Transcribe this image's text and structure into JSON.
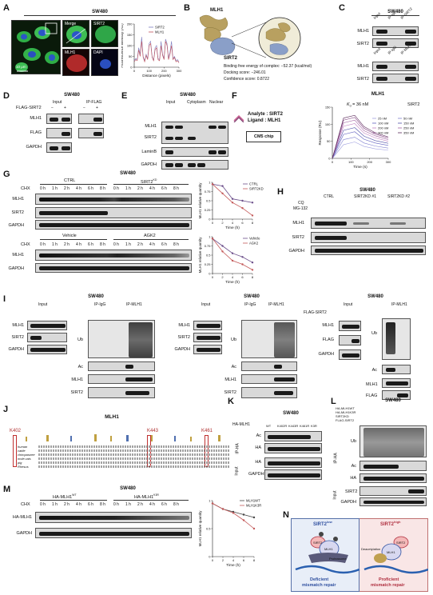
{
  "panels": {
    "A": {
      "label": "A",
      "title": "SW480",
      "merge": "Merge",
      "sirt2": "SIRT2",
      "mlh1": "MLH1",
      "dapi": "DAPI",
      "scale": "10 μm",
      "ylabel": "Fluorescence intensity (AU)",
      "xlabel": "Distance (pixels)",
      "legend": [
        "SIRT2",
        "MLH1"
      ]
    },
    "B": {
      "label": "B",
      "mlh1": "MLH1",
      "sirt2": "SIRT2",
      "lines": [
        "Binding free energy of complex: −52.37 (kcal/mol)",
        "Docking score: −246.01",
        "Confidence score: 0.8722"
      ]
    },
    "C": {
      "label": "C",
      "title": "SW480",
      "lanes": [
        "Input",
        "IP-IgG",
        "IP-SIRT2"
      ],
      "lanes2": [
        "Input",
        "IP-IgG",
        "IP-MLH1"
      ],
      "rows": [
        "MLH1",
        "SIRT2",
        "MLH1",
        "SIRT2"
      ]
    },
    "D": {
      "label": "D",
      "title": "SW480",
      "flag": "FLAG-SIRT2",
      "minus": "−",
      "plus": "+",
      "input": "Input",
      "ipflag": "IP-FLAG",
      "rows": [
        "MLH1",
        "FLAG",
        "GAPDH"
      ]
    },
    "E": {
      "label": "E",
      "title": "SW480",
      "groups": [
        "Input",
        "Cytoplasm",
        "Nuclear"
      ],
      "rows": [
        "MLH1",
        "SIRT2",
        "LaminB",
        "GAPDH"
      ]
    },
    "F": {
      "label": "F",
      "title": "MLH1",
      "analyte": "Analyte : SIRT2",
      "ligand": "Ligand : MLH1",
      "chip": "CM5 chip",
      "kd": "K",
      "kd_sub": "d",
      "kd_val": " = 36 nM",
      "sirt2": "SIRT2",
      "conc": [
        "25 nM",
        "50 nM",
        "100 nM",
        "150 nM",
        "200 nM",
        "250 nM",
        "300 nM",
        "350 nM"
      ],
      "ylabel": "Response (RU)",
      "xlabel": "Time (s)"
    },
    "G": {
      "label": "G",
      "title": "SW480",
      "ctrl": "CTRL",
      "kd": "SIRT2",
      "kd_sup": "KD",
      "vehicle": "Vehicle",
      "agk2": "AGK2",
      "chx": "CHX",
      "times": [
        "0 h",
        "1 h",
        "2 h",
        "4 h",
        "6 h",
        "8 h"
      ],
      "rows1": [
        "MLH1",
        "SIRT2",
        "GAPDH"
      ],
      "rows2": [
        "MLH1",
        "GAPDH"
      ],
      "ylabel": "MLH1 relative quantity",
      "xlabel": "Time (h)",
      "legend1": [
        "CTRL",
        "SIRT2KD"
      ],
      "legend2": [
        "Vehicle",
        "AGK2"
      ]
    },
    "H": {
      "label": "H",
      "title": "SW480",
      "groups": [
        "CTRL",
        "SIRT2KD #1",
        "SIRT2KD #2"
      ],
      "cq": "CQ",
      "mg": "MG-132",
      "rows": [
        "MLH1",
        "SIRT2",
        "GAPDH"
      ]
    },
    "I": {
      "label": "I",
      "title": "SW480",
      "input": "Input",
      "ipigg": "IP-IgG",
      "ipmlh1": "IP-MLH1",
      "rows_left": [
        "MLH1",
        "SIRT2",
        "GAPDH"
      ],
      "rows_right": [
        "Ub",
        "Ac",
        "MLH1",
        "SIRT2"
      ],
      "flag": "FLAG-SIRT2",
      "rows3_left": [
        "MLH1",
        "FLAG",
        "GAPDH"
      ],
      "rows3_right": [
        "Ub",
        "Ac",
        "MLH1",
        "FLAG"
      ]
    },
    "J": {
      "label": "J",
      "title": "MLH1",
      "sites": [
        "K402",
        "K443",
        "K461"
      ],
      "species": [
        "human",
        "cattle",
        "chimpanzee",
        "mole-rats",
        "pig",
        "Rhesus"
      ]
    },
    "K": {
      "label": "K",
      "title": "SW480",
      "ha": "HA-MLH1",
      "variants": [
        "WT",
        "K402R",
        "K443R",
        "K461R",
        "K3R"
      ],
      "rows": [
        "Ac",
        "HA",
        "HA",
        "GAPDH"
      ],
      "ip": "IP-HA",
      "inp": "Input"
    },
    "L": {
      "label": "L",
      "title": "SW480",
      "rows": [
        "Ub",
        "Ac",
        "HA",
        "SIRT2",
        "GAPDH"
      ],
      "conds": [
        "HA-MLH1WT",
        "HA-MLH1K3R",
        "SIRT2KD",
        "FLAG-SIRT2"
      ],
      "ip": "IP-HA",
      "inp": "Input"
    },
    "M": {
      "label": "M",
      "title": "SW480",
      "wt": "HA-MLH1",
      "k3r": "HA-MLH1",
      "wt_sup": "WT",
      "k3r_sup": "K3R",
      "chx": "CHX",
      "times": [
        "0 h",
        "1 h",
        "2 h",
        "4 h",
        "6 h",
        "8 h"
      ],
      "rows": [
        "HA-MLH1",
        "GAPDH"
      ],
      "ylabel": "MLH1 relative quantity",
      "xlabel": "Time (h)",
      "legend": [
        "MLH1WT",
        "MLH1K3R"
      ]
    },
    "N": {
      "label": "N",
      "left_title": "SIRT2",
      "left_sup": "low",
      "right_title": "SIRT2",
      "right_sup": "high",
      "left_foot": [
        "Deficient",
        "mismatch repair"
      ],
      "right_foot": [
        "Proficient",
        "mismatch repair"
      ],
      "proteasome": "Proteasome",
      "deacetylation": "Deacetylation",
      "mlh1": "MLH1",
      "sirt2": "SIRT2"
    }
  },
  "colors": {
    "sirt2_line": "#7d7dbf",
    "mlh1_line": "#c0505a",
    "ctrl": "#6b4e8a",
    "kd": "#c45a5a",
    "chart_gray": "#888888"
  },
  "chart_data": [
    {
      "type": "line",
      "title": "",
      "xlabel": "Distance (pixels)",
      "ylabel": "Fluorescence intensity (AU)",
      "ylim": [
        0,
        200
      ],
      "xlim": [
        0,
        300
      ],
      "x_ticks": [
        0,
        100,
        200,
        300
      ],
      "y_ticks": [
        0,
        50,
        100,
        150,
        200
      ],
      "series": [
        {
          "name": "SIRT2",
          "x": [
            0,
            10,
            20,
            30,
            40,
            50,
            60,
            70,
            80,
            90,
            100,
            110,
            120,
            130,
            140,
            150,
            160,
            170,
            180,
            190,
            200,
            210,
            220,
            230,
            240,
            250,
            260,
            270,
            280,
            290,
            300
          ],
          "values": [
            30,
            40,
            35,
            90,
            60,
            140,
            50,
            30,
            60,
            40,
            110,
            120,
            50,
            30,
            90,
            100,
            40,
            35,
            120,
            60,
            40,
            130,
            110,
            40,
            70,
            120,
            40,
            50,
            30,
            35,
            25
          ]
        },
        {
          "name": "MLH1",
          "x": [
            0,
            10,
            20,
            30,
            40,
            50,
            60,
            70,
            80,
            90,
            100,
            110,
            120,
            130,
            140,
            150,
            160,
            170,
            180,
            190,
            200,
            210,
            220,
            230,
            240,
            250,
            260,
            270,
            280,
            290,
            300
          ],
          "values": [
            25,
            35,
            30,
            80,
            50,
            120,
            45,
            25,
            55,
            35,
            100,
            110,
            45,
            30,
            80,
            90,
            35,
            30,
            100,
            55,
            35,
            120,
            100,
            35,
            60,
            100,
            35,
            45,
            25,
            30,
            20
          ]
        }
      ]
    },
    {
      "type": "line",
      "title": "",
      "xlabel": "Time (s)",
      "ylabel": "Response (RU)",
      "ylim": [
        0,
        150
      ],
      "xlim": [
        0,
        300
      ],
      "x_ticks": [
        0,
        100,
        200,
        300
      ],
      "y_ticks": [
        0,
        50,
        100,
        150
      ],
      "series": [
        {
          "name": "25 nM",
          "values": [
            0,
            40,
            48,
            35,
            28,
            24
          ]
        },
        {
          "name": "50 nM",
          "values": [
            0,
            55,
            62,
            45,
            36,
            30
          ]
        },
        {
          "name": "100 nM",
          "values": [
            0,
            70,
            78,
            56,
            45,
            38
          ]
        },
        {
          "name": "150 nM",
          "values": [
            0,
            82,
            90,
            65,
            52,
            44
          ]
        },
        {
          "name": "200 nM",
          "values": [
            0,
            94,
            102,
            74,
            60,
            50
          ]
        },
        {
          "name": "250 nM",
          "values": [
            0,
            104,
            112,
            81,
            66,
            55
          ]
        },
        {
          "name": "300 nM",
          "values": [
            0,
            112,
            120,
            88,
            71,
            60
          ]
        },
        {
          "name": "350 nM",
          "values": [
            0,
            118,
            126,
            93,
            75,
            63
          ]
        }
      ],
      "x": [
        0,
        60,
        120,
        170,
        230,
        300
      ]
    },
    {
      "type": "line",
      "title": "",
      "xlabel": "Time (h)",
      "ylabel": "MLH1 relative quantity",
      "ylim": [
        0,
        1.0
      ],
      "x": [
        0,
        2,
        4,
        6,
        8
      ],
      "y_ticks": [
        0,
        0.25,
        0.5,
        0.75,
        1.0
      ],
      "series": [
        {
          "name": "CTRL",
          "values": [
            0.95,
            0.9,
            0.55,
            0.5,
            0.45
          ]
        },
        {
          "name": "SIRT2KD",
          "values": [
            0.95,
            0.7,
            0.45,
            0.3,
            0.1
          ]
        }
      ]
    },
    {
      "type": "line",
      "title": "",
      "xlabel": "Time (h)",
      "ylabel": "MLH1 relative quantity",
      "ylim": [
        0,
        1.0
      ],
      "x": [
        0,
        2,
        4,
        6,
        8
      ],
      "y_ticks": [
        0,
        0.25,
        0.5,
        0.75,
        1.0
      ],
      "series": [
        {
          "name": "Vehicle",
          "values": [
            0.95,
            0.75,
            0.55,
            0.45,
            0.3
          ]
        },
        {
          "name": "AGK2",
          "values": [
            0.95,
            0.6,
            0.35,
            0.25,
            0.1
          ]
        }
      ]
    },
    {
      "type": "line",
      "title": "",
      "xlabel": "Time (h)",
      "ylabel": "MLH1 relative quantity",
      "ylim": [
        0,
        1.0
      ],
      "x": [
        0,
        2,
        4,
        6,
        8
      ],
      "y_ticks": [
        0,
        0.5,
        1.0
      ],
      "series": [
        {
          "name": "MLH1WT",
          "values": [
            0.95,
            0.85,
            0.8,
            0.75,
            0.7
          ]
        },
        {
          "name": "MLH1K3R",
          "values": [
            0.95,
            0.85,
            0.78,
            0.65,
            0.5
          ]
        }
      ]
    }
  ]
}
